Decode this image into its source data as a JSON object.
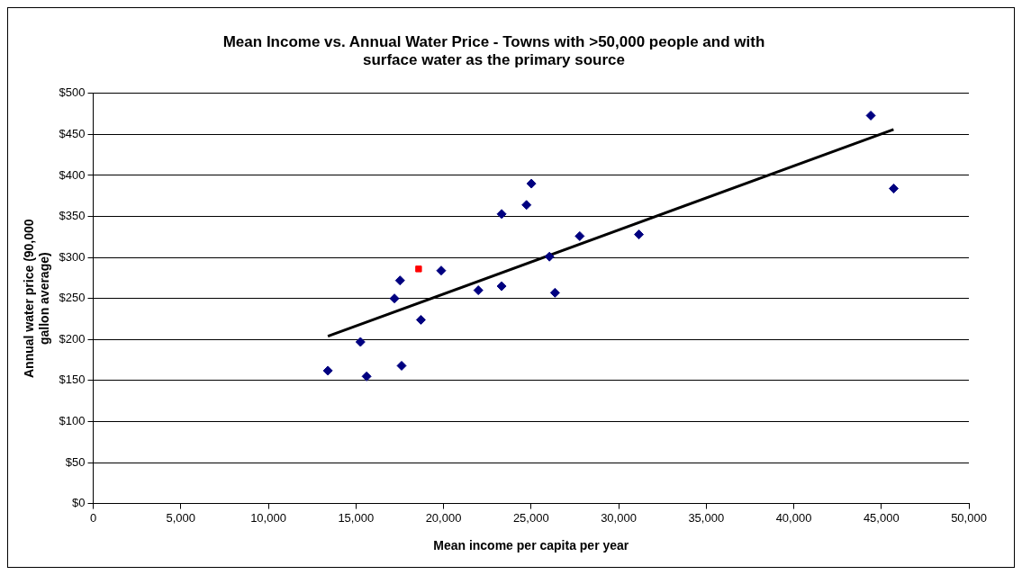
{
  "chart_data": {
    "type": "scatter",
    "title": "Mean Income vs. Annual Water Price - Towns with >50,000 people and with surface water as the primary source",
    "xlabel": "Mean income per capita per year",
    "ylabel": "Annual water price (90,000 gallon average)",
    "series": [
      {
        "color": "#000080",
        "marker": "diamond",
        "x": [
          13400,
          15260,
          15610,
          17200,
          17520,
          17610,
          18710,
          19870,
          21990,
          23320,
          23320,
          24740,
          25020,
          26050,
          26370,
          27780,
          31160,
          44400,
          45710
        ],
        "values": [
          162,
          197,
          155,
          250,
          272,
          168,
          224,
          284,
          260,
          265,
          353,
          364,
          390,
          301,
          257,
          326,
          328,
          473,
          384
        ]
      },
      {
        "color": "#ff0000",
        "marker": "square",
        "x": [
          18580
        ],
        "values": [
          286
        ]
      },
      {
        "type": "line",
        "color": "#000000",
        "marker": "none",
        "line_style": "solid",
        "x": [
          13400,
          45700
        ],
        "values": [
          204,
          456
        ]
      }
    ],
    "xlim": [
      0,
      50000
    ],
    "xticks": [
      0,
      {
        "value": 5000,
        "label": "5,000"
      },
      {
        "value": 10000,
        "label": "10,000"
      },
      {
        "value": 15000,
        "label": "15,000"
      },
      {
        "value": 20000,
        "label": "20,000"
      },
      {
        "value": 25000,
        "label": "25,000"
      },
      {
        "value": 30000,
        "label": "30,000"
      },
      {
        "value": 35000,
        "label": "35,000"
      },
      {
        "value": 40000,
        "label": "40,000"
      },
      {
        "value": 45000,
        "label": "45,000"
      },
      {
        "value": 50000,
        "label": "50,000"
      }
    ],
    "ylim": [
      0,
      500
    ],
    "yticks": [
      {
        "value": 0,
        "label": "$0"
      },
      {
        "value": 50,
        "label": "$50"
      },
      {
        "value": 100,
        "label": "$100"
      },
      {
        "value": 150,
        "label": "$150"
      },
      {
        "value": 200,
        "label": "$200"
      },
      {
        "value": 250,
        "label": "$250"
      },
      {
        "value": 300,
        "label": "$300"
      },
      {
        "value": 350,
        "label": "$350"
      },
      {
        "value": 400,
        "label": "$400"
      },
      {
        "value": 450,
        "label": "$450"
      },
      {
        "value": 500,
        "label": "$500"
      }
    ],
    "grid": "y",
    "legend": false
  }
}
